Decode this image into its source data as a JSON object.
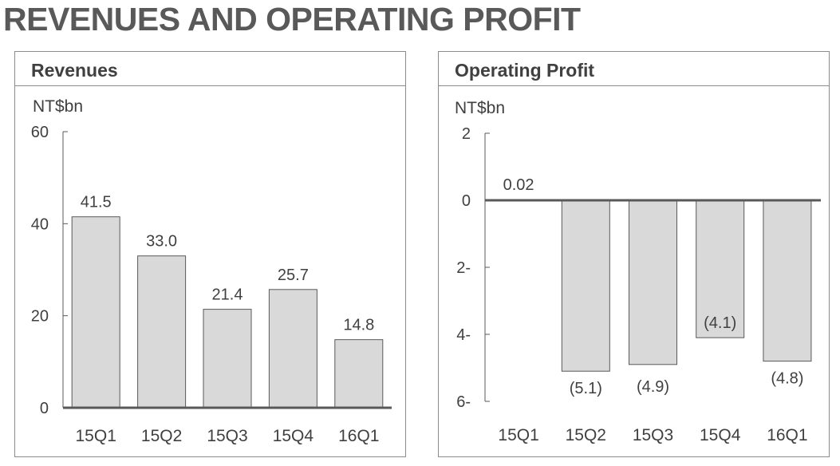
{
  "page": {
    "title": "REVENUES AND OPERATING PROFIT"
  },
  "colors": {
    "bar_fill": "#d9d9d9",
    "bar_stroke": "#595959",
    "axis": "#595959",
    "text": "#404040"
  },
  "chart_data": [
    {
      "type": "bar",
      "title": "Revenues",
      "unit": "NT$bn",
      "categories": [
        "15Q1",
        "15Q2",
        "15Q3",
        "15Q4",
        "16Q1"
      ],
      "values": [
        41.5,
        33.0,
        21.4,
        25.7,
        14.8
      ],
      "labels": [
        "41.5",
        "33.0",
        "21.4",
        "25.7",
        "14.8"
      ],
      "ylim": [
        0,
        60
      ],
      "yticks": [
        "0",
        "20",
        "40",
        "60"
      ],
      "grid": false,
      "legend": "none"
    },
    {
      "type": "bar",
      "title": "Operating Profit",
      "unit": "NT$bn",
      "categories": [
        "15Q1",
        "15Q2",
        "15Q3",
        "15Q4",
        "16Q1"
      ],
      "values": [
        0.02,
        -5.1,
        -4.9,
        -4.1,
        -4.8
      ],
      "labels": [
        "0.02",
        "(5.1)",
        "(4.9)",
        "(4.1)",
        "(4.8)"
      ],
      "ylim": [
        -6,
        2
      ],
      "yticks": [
        "6-",
        "4-",
        "2-",
        "0",
        "2"
      ],
      "grid": false,
      "legend": "none"
    }
  ]
}
